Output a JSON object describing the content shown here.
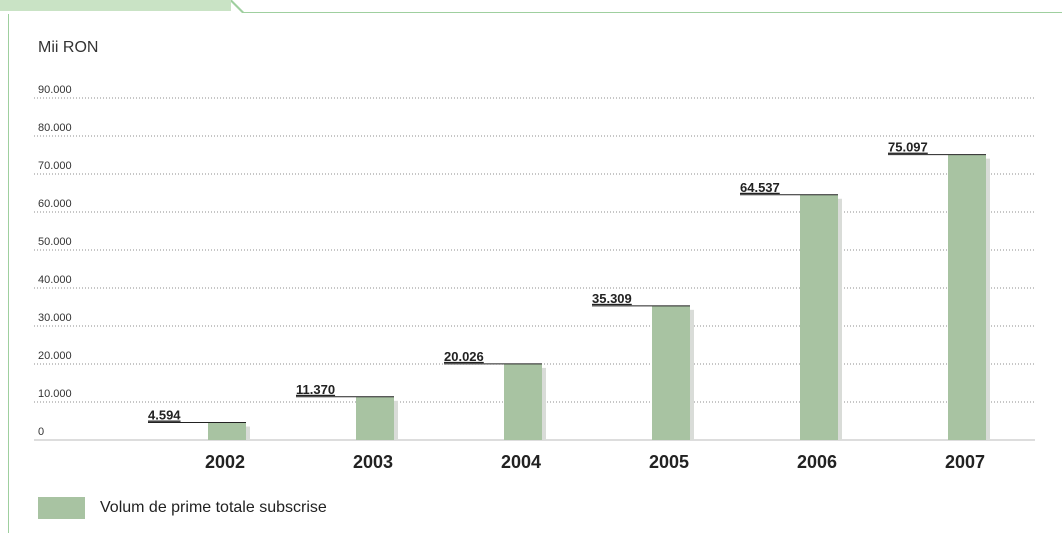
{
  "colors": {
    "bar": "#a8c3a2",
    "frame": "#9fcf9f",
    "tab": "#c9e3c5",
    "grid": "#8c8c8c"
  },
  "chart_data": {
    "type": "bar",
    "unit_label": "Mii RON",
    "categories": [
      "2002",
      "2003",
      "2004",
      "2005",
      "2006",
      "2007"
    ],
    "values": [
      4594,
      11370,
      20026,
      35309,
      64537,
      75097
    ],
    "value_labels": [
      "4.594",
      "11.370",
      "20.026",
      "35.309",
      "64.537",
      "75.097"
    ],
    "y_ticks": [
      "0",
      "10.000",
      "20.000",
      "30.000",
      "40.000",
      "50.000",
      "60.000",
      "70.000",
      "80.000",
      "90.000"
    ],
    "ylim": [
      0,
      90000
    ],
    "grid": true,
    "grid_style": "dotted",
    "legend": {
      "position": "bottom-left",
      "entries": [
        "Volum de prime totale subscrise"
      ]
    }
  }
}
